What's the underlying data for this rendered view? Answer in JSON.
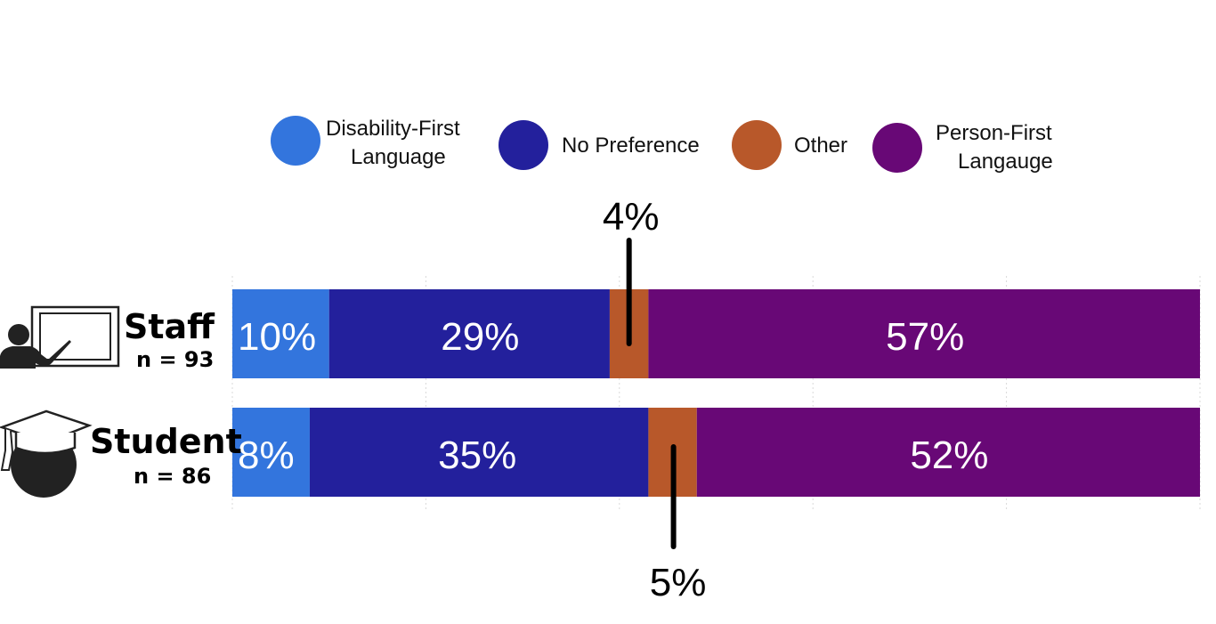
{
  "chart_data": {
    "type": "bar",
    "orientation": "horizontal",
    "stacked": true,
    "title": "",
    "xlabel": "",
    "ylabel": "",
    "xlim": [
      0,
      100
    ],
    "grid": true,
    "legend_position": "top",
    "categories": [
      {
        "name": "Staff",
        "n_label": "n = 93",
        "icon": "teacher-icon"
      },
      {
        "name": "Student",
        "n_label": "n = 86",
        "icon": "graduate-icon"
      }
    ],
    "series": [
      {
        "name": "Disability-First Language",
        "legend_lines": [
          "Disability-First",
          "Language"
        ],
        "color": "#3375DD",
        "values": [
          10,
          8
        ],
        "labels": [
          "10%",
          "8%"
        ]
      },
      {
        "name": "No Preference",
        "legend_lines": [
          "No Preference"
        ],
        "color": "#23209C",
        "values": [
          29,
          35
        ],
        "labels": [
          "29%",
          "35%"
        ]
      },
      {
        "name": "Other",
        "legend_lines": [
          "Other"
        ],
        "color": "#B8582A",
        "values": [
          4,
          5
        ],
        "labels": [
          "4%",
          "5%"
        ],
        "callout": true
      },
      {
        "name": "Person-First Langauge",
        "legend_lines": [
          "Person-First",
          "Langauge"
        ],
        "color": "#680876",
        "values": [
          57,
          52
        ],
        "labels": [
          "57%",
          "52%"
        ]
      }
    ]
  }
}
